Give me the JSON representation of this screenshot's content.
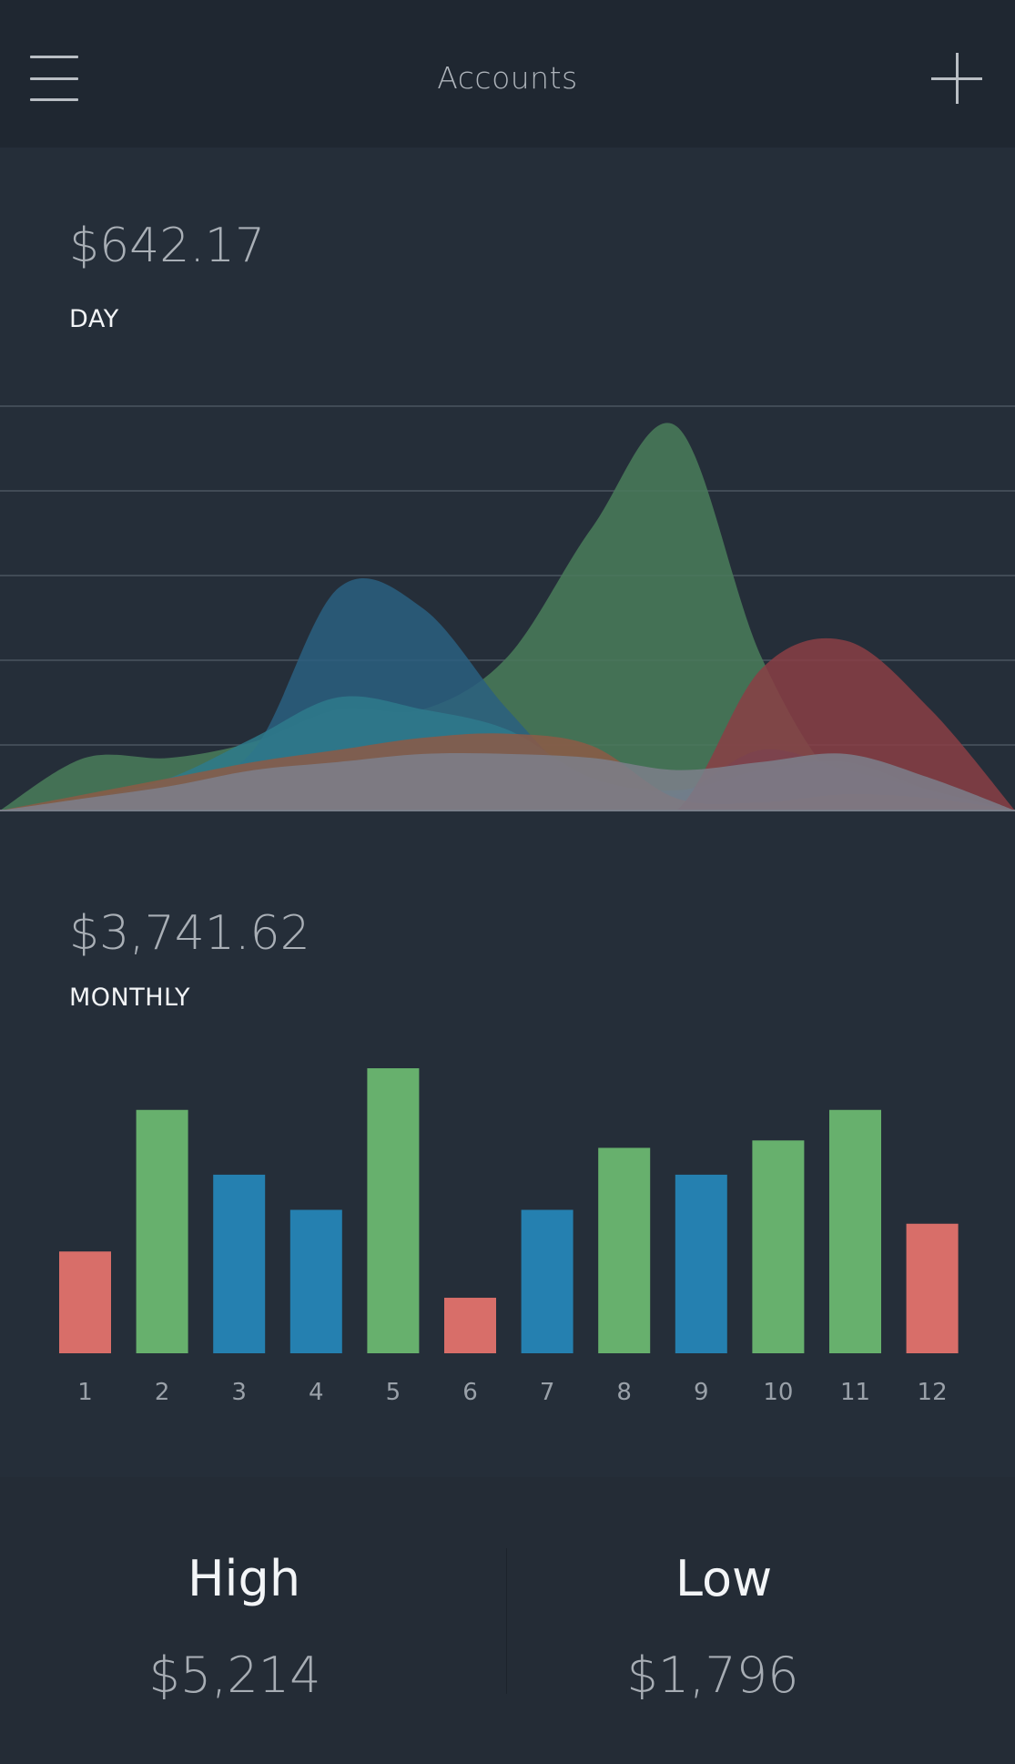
{
  "header": {
    "title": "Accounts",
    "menu_icon": "menu-icon",
    "add_icon": "plus-icon"
  },
  "day": {
    "value": "$642.17",
    "label": "DAY"
  },
  "monthly": {
    "value": "$3,741.62",
    "label": "MONTHLY"
  },
  "stats": {
    "high_label": "High",
    "high_value": "$5,214",
    "low_label": "Low",
    "low_value": "$1,796"
  },
  "colors": {
    "green": "#67b06d",
    "blue": "#2580b0",
    "red": "#d86e69",
    "background": "#252e39",
    "header": "#1f2731"
  },
  "chart_data": [
    {
      "type": "area",
      "title": "",
      "xlabel": "",
      "ylabel": "",
      "x": [
        0,
        1,
        2,
        3,
        4,
        5,
        6,
        7,
        8,
        9,
        10,
        11,
        12
      ],
      "ylim": [
        0,
        100
      ],
      "grid": true,
      "series": [
        {
          "color": "#4a7c5a",
          "values": [
            0,
            13,
            13,
            17,
            25,
            25,
            38,
            70,
            95,
            38,
            5,
            2,
            0
          ]
        },
        {
          "color": "#2a5f80",
          "values": [
            0,
            2,
            5,
            15,
            55,
            50,
            25,
            5,
            4,
            15,
            10,
            5,
            0
          ]
        },
        {
          "color": "#2e7a8c",
          "values": [
            0,
            3,
            8,
            18,
            28,
            25,
            20,
            8,
            5,
            10,
            12,
            5,
            0
          ]
        },
        {
          "color": "#8c5b47",
          "values": [
            0,
            4,
            8,
            12,
            15,
            18,
            19,
            16,
            3,
            2,
            4,
            3,
            0
          ]
        },
        {
          "color": "#8a3e45",
          "values": [
            0,
            0,
            0,
            0,
            0,
            0,
            0,
            0,
            0,
            35,
            42,
            25,
            0
          ]
        },
        {
          "color": "#7c7f8b",
          "values": [
            0,
            3,
            6,
            10,
            12,
            14,
            14,
            13,
            10,
            12,
            14,
            8,
            0
          ]
        }
      ]
    },
    {
      "type": "bar",
      "title": "",
      "xlabel": "",
      "ylabel": "",
      "categories": [
        "1",
        "2",
        "3",
        "4",
        "5",
        "6",
        "7",
        "8",
        "9",
        "10",
        "11",
        "12"
      ],
      "values": [
        110,
        263,
        193,
        155,
        308,
        60,
        155,
        222,
        193,
        230,
        263,
        140
      ],
      "colors": [
        "#d86e69",
        "#67b06d",
        "#2580b0",
        "#2580b0",
        "#67b06d",
        "#d86e69",
        "#2580b0",
        "#67b06d",
        "#2580b0",
        "#67b06d",
        "#67b06d",
        "#d86e69"
      ],
      "ylim": [
        0,
        310
      ],
      "grid": false
    }
  ]
}
